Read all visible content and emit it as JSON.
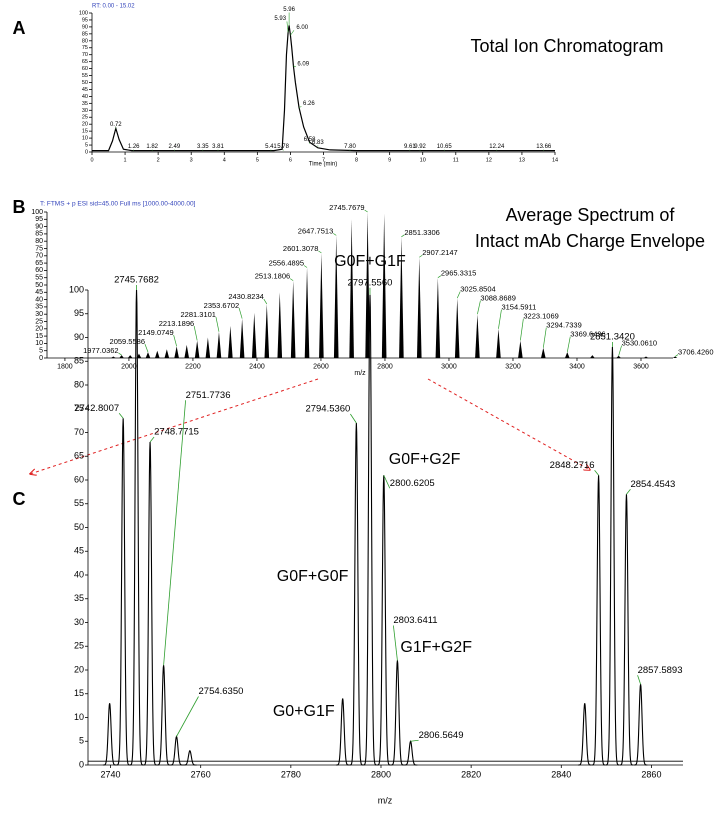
{
  "chart_data": [
    {
      "type": "line",
      "panel": "A",
      "header": "RT: 0.00 - 15.02",
      "title": "Total Ion Chromatogram",
      "xlabel": "Time (min)",
      "xlim": [
        0,
        14
      ],
      "xticks": [
        0,
        1,
        2,
        3,
        4,
        5,
        6,
        7,
        8,
        9,
        10,
        11,
        12,
        13,
        14
      ],
      "ylim": [
        0,
        100
      ],
      "yticks": [
        0,
        5,
        10,
        15,
        20,
        25,
        30,
        35,
        40,
        45,
        50,
        55,
        60,
        65,
        70,
        75,
        80,
        85,
        90,
        95,
        100
      ],
      "color": "#000000",
      "header_color": "#3344bb",
      "leader_color": "#2e9e2e",
      "trace": {
        "x": [
          0,
          0.5,
          0.62,
          0.72,
          0.82,
          0.95,
          1.2,
          2.5,
          4,
          5.5,
          5.75,
          5.82,
          5.88,
          5.93,
          5.96,
          6.0,
          6.04,
          6.09,
          6.15,
          6.26,
          6.4,
          6.58,
          6.83,
          7.2,
          8,
          10,
          12,
          14
        ],
        "values": [
          1,
          1,
          8,
          17,
          9,
          2,
          1,
          1,
          1,
          1,
          2,
          30,
          70,
          86,
          91,
          84,
          75,
          62,
          50,
          32,
          18,
          7,
          3,
          1.5,
          1,
          1,
          1,
          1
        ]
      },
      "peaks": {
        "x": [
          0.72,
          1.26,
          1.82,
          2.49,
          3.35,
          3.81,
          5.41,
          5.78,
          5.93,
          5.96,
          {
            "value": 6.0,
            "label": "6.00"
          },
          6.09,
          6.26,
          6.58,
          6.83,
          {
            "value": 7.8,
            "label": "7.80"
          },
          9.61,
          9.92,
          10.65,
          12.24,
          13.66
        ],
        "values": [
          17,
          1,
          1,
          1,
          1,
          1,
          1,
          1,
          86,
          91,
          84,
          62,
          32,
          6,
          4,
          1,
          1,
          1,
          1,
          1,
          1
        ]
      }
    },
    {
      "type": "bar",
      "panel": "B",
      "header": "T: FTMS + p ESI sid=45.00  Full ms [1000.00-4000.00]",
      "title": [
        "Average Spectrum of",
        "Intact mAb Charge Envelope"
      ],
      "xlabel": "m/z",
      "xlim": [
        1744,
        3700
      ],
      "xticks": [
        1800,
        2000,
        2200,
        2400,
        2600,
        2800,
        3000,
        3200,
        3400,
        3600
      ],
      "ylim": [
        0,
        100
      ],
      "yticks": [
        0,
        5,
        10,
        15,
        20,
        25,
        30,
        35,
        40,
        45,
        50,
        55,
        60,
        65,
        70,
        75,
        80,
        85,
        90,
        95,
        100
      ],
      "color": "#000000",
      "header_color": "#3344bb",
      "leader_color": "#2e9e2e",
      "x": [
        1951.3,
        1977.0362,
        2003.9,
        2031.3,
        2059.5586,
        2088.6,
        2118.4,
        2149.0749,
        2180.6,
        2213.1896,
        2246.7,
        2281.3101,
        2316.9,
        2353.6702,
        2391.6,
        2430.8234,
        2471.3,
        2513.1806,
        2556.4895,
        2601.3078,
        2647.7513,
        2695.9,
        2745.7679,
        2797.5,
        2851.3306,
        2907.2147,
        2965.3315,
        3025.8504,
        3088.8689,
        3154.5911,
        3223.1069,
        3294.7339,
        3369.6496,
        3448.1,
        3530.061,
        3615.6,
        3706.426
      ],
      "values": [
        1,
        2,
        2,
        3,
        4,
        5,
        6,
        8,
        9,
        12,
        14,
        18,
        22,
        27,
        31,
        37,
        45,
        53,
        62,
        72,
        84,
        95,
        100,
        99,
        83,
        69,
        55,
        41,
        30,
        20,
        12,
        7,
        4,
        2,
        1.5,
        1,
        1
      ],
      "x_labels": [
        null,
        "1977.0362",
        null,
        null,
        "2059.5586",
        null,
        null,
        "2149.0749",
        null,
        "2213.1896",
        null,
        "2281.3101",
        null,
        "2353.6702",
        null,
        "2430.8234",
        null,
        "2513.1806",
        "2556.4895",
        "2601.3078",
        "2647.7513",
        null,
        "2745.7679",
        null,
        "2851.3306",
        "2907.2147",
        "2965.3315",
        "3025.8504",
        "3088.8689",
        "3154.5911",
        "3223.1069",
        "3294.7339",
        "3369.6496",
        null,
        "3530.0610",
        null,
        "3706.4260"
      ]
    },
    {
      "type": "peak",
      "panel": "C",
      "xlabel": "m/z",
      "xlim": [
        2735,
        2867
      ],
      "xticks": [
        2740,
        2760,
        2780,
        2800,
        2820,
        2840,
        2860
      ],
      "ylim": [
        0,
        100
      ],
      "yticks": [
        0,
        5,
        10,
        15,
        20,
        25,
        30,
        35,
        40,
        45,
        50,
        55,
        60,
        65,
        70,
        75,
        80,
        85,
        90,
        95,
        100
      ],
      "color": "#000000",
      "leader_color": "#2e9e2e",
      "x": [
        2739.8,
        2742.8007,
        2745.7682,
        2748.7715,
        2751.7736,
        2754.635,
        2757.6,
        2791.5,
        2794.536,
        2797.556,
        2800.6205,
        2803.6411,
        2806.5649,
        2845.2,
        2848.2716,
        2851.342,
        2854.4543,
        2857.5893
      ],
      "values": [
        13,
        73,
        100,
        68,
        21,
        6,
        3,
        14,
        72,
        99,
        61,
        22,
        5,
        13,
        61,
        88,
        57,
        17
      ],
      "x_labels": [
        null,
        "2742.8007",
        "2745.7682",
        "2748.7715",
        "2751.7736",
        "2754.6350",
        null,
        null,
        "2794.5360",
        "2797.5560",
        "2800.6205",
        "2803.6411",
        "2806.5649",
        null,
        "2848.2716",
        "2851.3420",
        "2854.4543",
        "2857.5893"
      ],
      "annotations": [
        "G0F+G1F",
        "G0F+G0F",
        "G0F+G2F",
        "G1F+G2F",
        "G0+G1F"
      ]
    }
  ]
}
